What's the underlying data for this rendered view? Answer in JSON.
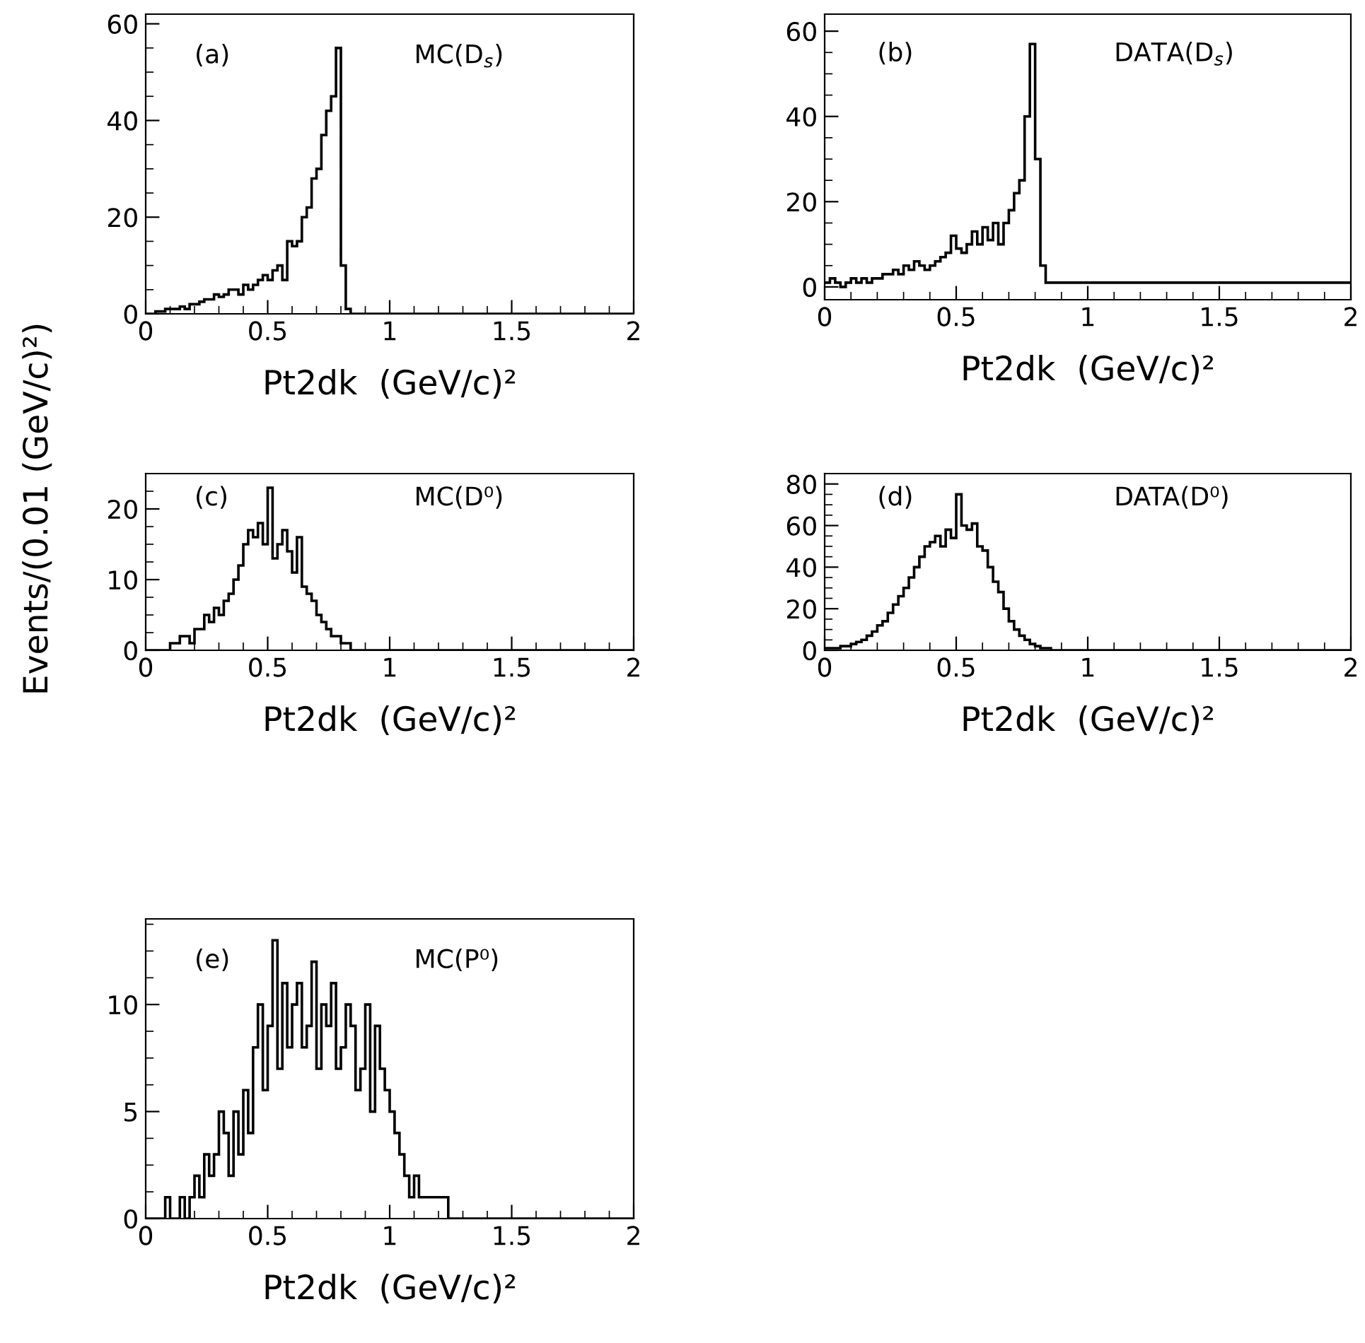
{
  "chart_data": [
    {
      "type": "histogram",
      "xlabel": "Pt2dk  (GeV/c)²",
      "ylabel": "Events/(0.01 (GeV/c)²)",
      "annotations": [
        "(a)",
        "MC(D$_{s}$)"
      ],
      "color": "#000000",
      "bins": [
        0,
        0.02,
        0.04,
        0.06,
        0.08,
        0.1,
        0.12,
        0.14,
        0.16,
        0.18,
        0.2,
        0.22,
        0.24,
        0.26,
        0.28,
        0.3,
        0.32,
        0.34,
        0.36,
        0.38,
        0.4,
        0.42,
        0.44,
        0.46,
        0.48,
        0.5,
        0.52,
        0.54,
        0.56,
        0.58,
        0.6,
        0.62,
        0.64,
        0.66,
        0.68,
        0.7,
        0.72,
        0.74,
        0.76,
        0.78,
        0.8,
        0.82,
        0.84,
        2
      ],
      "values": [
        0,
        0,
        0.5,
        0.5,
        1,
        1,
        1,
        1.5,
        1,
        2,
        2,
        2.5,
        3,
        3,
        4,
        3.5,
        4,
        5,
        5,
        4,
        6,
        5,
        6,
        7,
        8,
        7,
        9,
        10,
        7,
        15,
        14,
        15,
        20,
        22,
        28,
        30,
        37,
        42,
        45,
        55,
        10,
        1,
        0
      ],
      "xlim": [
        0,
        2
      ],
      "ylim": [
        0,
        62
      ],
      "xticks": [
        0,
        0.5,
        1,
        1.5,
        2
      ],
      "yticks": [
        0,
        20,
        40,
        60
      ]
    },
    {
      "type": "histogram",
      "xlabel": "Pt2dk  (GeV/c)²",
      "annotations": [
        "(b)",
        "DATA(D$_{s}$)"
      ],
      "color": "#000000",
      "bins": [
        0,
        0.02,
        0.04,
        0.06,
        0.08,
        0.1,
        0.12,
        0.14,
        0.16,
        0.18,
        0.2,
        0.22,
        0.24,
        0.26,
        0.28,
        0.3,
        0.32,
        0.34,
        0.36,
        0.38,
        0.4,
        0.42,
        0.44,
        0.46,
        0.48,
        0.5,
        0.52,
        0.54,
        0.56,
        0.58,
        0.6,
        0.62,
        0.64,
        0.66,
        0.68,
        0.7,
        0.72,
        0.74,
        0.76,
        0.78,
        0.8,
        0.82,
        0.84,
        0.86,
        2
      ],
      "values": [
        1,
        2,
        1,
        0,
        1,
        2,
        1,
        2,
        1,
        2,
        2,
        3,
        3,
        4,
        3,
        5,
        4,
        6,
        5,
        4,
        5,
        6,
        7,
        8,
        12,
        9,
        8,
        10,
        13,
        10,
        14,
        11,
        15,
        10,
        15,
        18,
        22,
        25,
        40,
        57,
        30,
        5,
        1,
        1
      ],
      "xlim": [
        0,
        2
      ],
      "ylim": [
        -3,
        64
      ],
      "xticks": [
        0,
        0.5,
        1,
        1.5,
        2
      ],
      "yticks": [
        0,
        20,
        40,
        60
      ]
    },
    {
      "type": "histogram",
      "xlabel": "Pt2dk  (GeV/c)²",
      "annotations": [
        "(c)",
        "MC(D⁰)"
      ],
      "color": "#000000",
      "bins": [
        0,
        0.02,
        0.04,
        0.06,
        0.08,
        0.1,
        0.12,
        0.14,
        0.16,
        0.18,
        0.2,
        0.22,
        0.24,
        0.26,
        0.28,
        0.3,
        0.32,
        0.34,
        0.36,
        0.38,
        0.4,
        0.42,
        0.44,
        0.46,
        0.48,
        0.5,
        0.52,
        0.54,
        0.56,
        0.58,
        0.6,
        0.62,
        0.64,
        0.66,
        0.68,
        0.7,
        0.72,
        0.74,
        0.76,
        0.78,
        0.8,
        0.82,
        0.84,
        0.86,
        0.88,
        0.9,
        2
      ],
      "values": [
        0,
        0,
        0,
        0,
        0,
        1,
        1,
        2,
        2,
        1,
        3,
        3,
        5,
        4,
        6,
        5,
        7,
        8,
        10,
        12,
        15,
        17,
        16,
        18,
        15,
        23,
        13,
        15,
        17,
        14,
        11,
        16,
        9,
        8,
        7,
        5,
        4,
        3,
        2,
        2,
        1,
        1,
        0,
        0,
        0,
        0
      ],
      "xlim": [
        0,
        2
      ],
      "ylim": [
        0,
        25
      ],
      "xticks": [
        0,
        0.5,
        1,
        1.5,
        2
      ],
      "yticks": [
        0,
        10,
        20
      ]
    },
    {
      "type": "histogram",
      "xlabel": "Pt2dk  (GeV/c)²",
      "annotations": [
        "(d)",
        "DATA(D⁰)"
      ],
      "color": "#000000",
      "bins": [
        0,
        0.02,
        0.04,
        0.06,
        0.08,
        0.1,
        0.12,
        0.14,
        0.16,
        0.18,
        0.2,
        0.22,
        0.24,
        0.26,
        0.28,
        0.3,
        0.32,
        0.34,
        0.36,
        0.38,
        0.4,
        0.42,
        0.44,
        0.46,
        0.48,
        0.5,
        0.52,
        0.54,
        0.56,
        0.58,
        0.6,
        0.62,
        0.64,
        0.66,
        0.68,
        0.7,
        0.72,
        0.74,
        0.76,
        0.78,
        0.8,
        0.82,
        0.84,
        0.86,
        0.88,
        0.9,
        2
      ],
      "values": [
        1,
        1,
        1,
        2,
        2,
        3,
        4,
        5,
        7,
        9,
        12,
        14,
        18,
        22,
        26,
        30,
        35,
        40,
        45,
        50,
        52,
        55,
        50,
        58,
        54,
        75,
        60,
        58,
        61,
        50,
        48,
        40,
        33,
        28,
        20,
        14,
        10,
        7,
        5,
        3,
        2,
        1,
        1,
        0,
        0,
        0
      ],
      "xlim": [
        0,
        2
      ],
      "ylim": [
        0,
        85
      ],
      "xticks": [
        0,
        0.5,
        1,
        1.5,
        2
      ],
      "yticks": [
        0,
        20,
        40,
        60,
        80
      ]
    },
    {
      "type": "histogram",
      "xlabel": "Pt2dk  (GeV/c)²",
      "annotations": [
        "(e)",
        "MC(P⁰)"
      ],
      "color": "#000000",
      "bins": [
        0,
        0.02,
        0.04,
        0.06,
        0.08,
        0.1,
        0.12,
        0.14,
        0.16,
        0.18,
        0.2,
        0.22,
        0.24,
        0.26,
        0.28,
        0.3,
        0.32,
        0.34,
        0.36,
        0.38,
        0.4,
        0.42,
        0.44,
        0.46,
        0.48,
        0.5,
        0.52,
        0.54,
        0.56,
        0.58,
        0.6,
        0.62,
        0.64,
        0.66,
        0.68,
        0.7,
        0.72,
        0.74,
        0.76,
        0.78,
        0.8,
        0.82,
        0.84,
        0.86,
        0.88,
        0.9,
        0.92,
        0.94,
        0.96,
        0.98,
        1,
        1.02,
        1.04,
        1.06,
        1.08,
        1.1,
        1.12,
        1.14,
        1.16,
        1.18,
        1.2,
        1.22,
        1.24,
        1.26,
        1.28,
        1.3,
        2
      ],
      "values": [
        0,
        0,
        0,
        0,
        1,
        0,
        0,
        1,
        0,
        1,
        2,
        1,
        3,
        2,
        3,
        5,
        4,
        2,
        5,
        3,
        6,
        4,
        8,
        10,
        6,
        9,
        13,
        7,
        11,
        8,
        10,
        11,
        8,
        9,
        12,
        7,
        10,
        9,
        11,
        7,
        8,
        10,
        9,
        6,
        7,
        10,
        5,
        9,
        7,
        6,
        5,
        4,
        3,
        2,
        1,
        2,
        1,
        1,
        1,
        1,
        1,
        1,
        0,
        0,
        0,
        0
      ],
      "xlim": [
        0,
        2
      ],
      "ylim": [
        0,
        14
      ],
      "xticks": [
        0,
        0.5,
        1,
        1.5,
        2
      ],
      "yticks": [
        0,
        5,
        10
      ]
    }
  ]
}
